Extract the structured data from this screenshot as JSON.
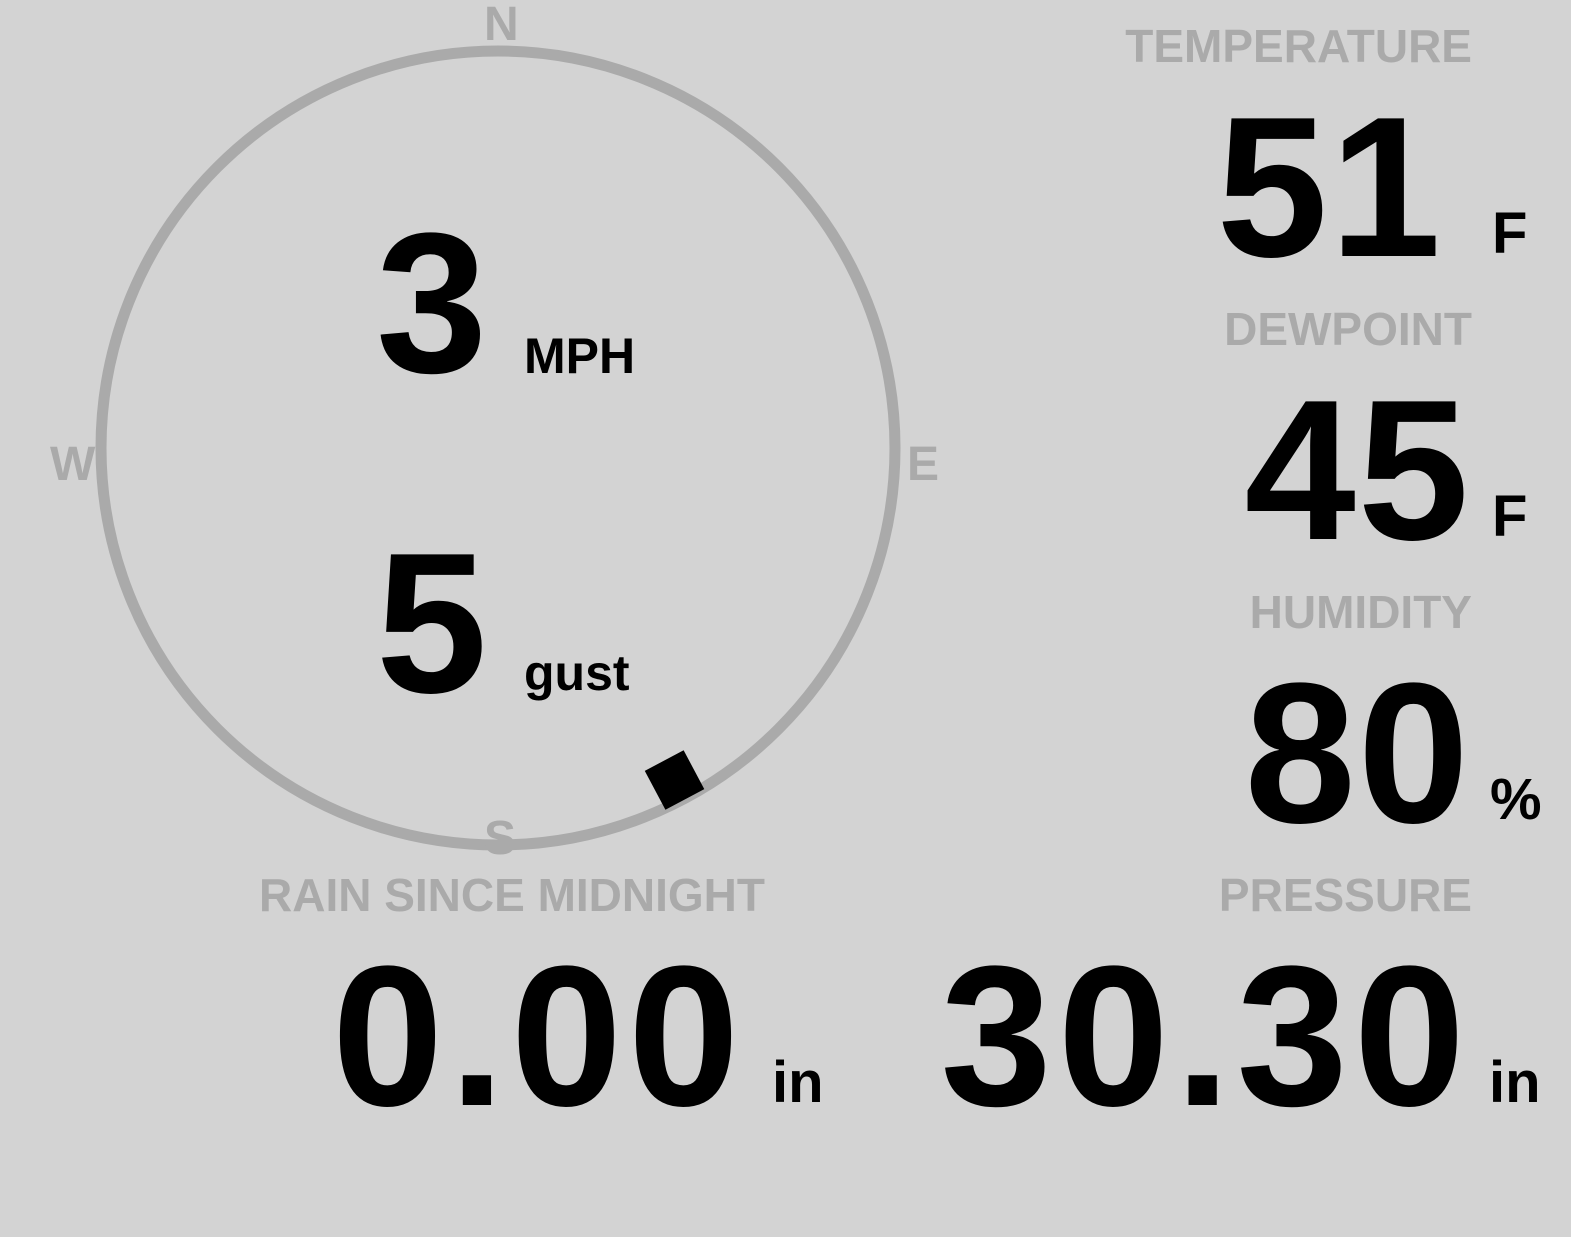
{
  "colors": {
    "background": "#d3d3d3",
    "label": "#aaaaaa",
    "value": "#000000"
  },
  "compass": {
    "north": "N",
    "east": "E",
    "south": "S",
    "west": "W",
    "wind_direction_deg": 152,
    "wind_speed": "3",
    "wind_speed_unit": "MPH",
    "gust": "5",
    "gust_unit": "gust"
  },
  "temperature": {
    "label": "TEMPERATURE",
    "value": "51",
    "unit": "F"
  },
  "dewpoint": {
    "label": "DEWPOINT",
    "value": "45",
    "unit": "F"
  },
  "humidity": {
    "label": "HUMIDITY",
    "value": "80",
    "unit": "%"
  },
  "pressure": {
    "label": "PRESSURE",
    "value": "30.30",
    "unit": "in"
  },
  "rain": {
    "label": "RAIN SINCE MIDNIGHT",
    "value": "0.00",
    "unit": "in"
  }
}
